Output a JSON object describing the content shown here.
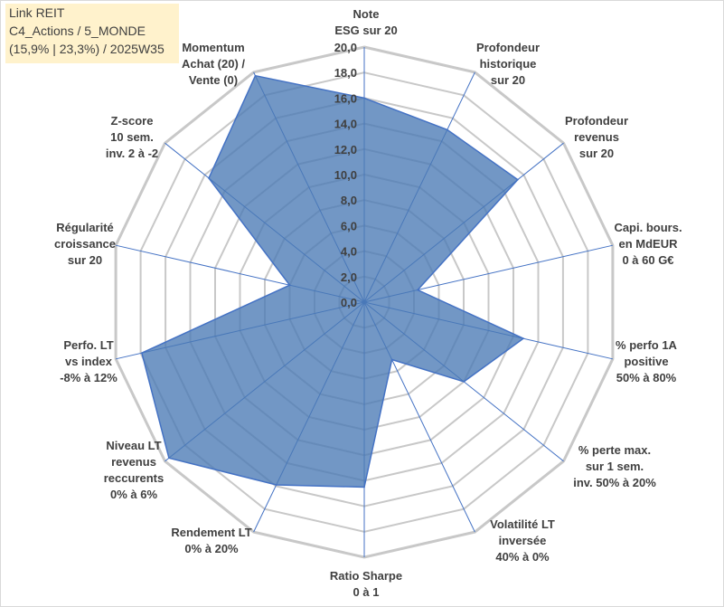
{
  "title": {
    "line1": "Link REIT",
    "line2": "C4_Actions / 5_MONDE",
    "line3": "(15,9% | 23,3%) / 2025W35"
  },
  "chart_data": {
    "type": "radar",
    "r_range": [
      0,
      20
    ],
    "r_ticks": [
      "0,0",
      "2,0",
      "4,0",
      "6,0",
      "8,0",
      "10,0",
      "12,0",
      "14,0",
      "16,0",
      "18,0",
      "20,0"
    ],
    "categories": [
      [
        "Note",
        "ESG sur 20"
      ],
      [
        "Profondeur",
        "historique",
        "sur 20"
      ],
      [
        "Profondeur",
        "revenus",
        "sur 20"
      ],
      [
        "Capi. bours.",
        "en MdEUR",
        "0 à 60 G€"
      ],
      [
        "% perfo 1A",
        "positive",
        "50% à 80%"
      ],
      [
        "% perte max.",
        "sur 1 sem.",
        "inv. 50% à 20%"
      ],
      [
        "Volatilité LT",
        "inversée",
        "40% à 0%"
      ],
      [
        "Ratio Sharpe",
        "0 à 1"
      ],
      [
        "Rendement LT",
        "0% à 20%"
      ],
      [
        "Niveau LT",
        "revenus",
        "reccurents",
        "0% à 6%"
      ],
      [
        "Perfo. LT",
        "vs index",
        "-8% à 12%"
      ],
      [
        "Régularité",
        "croissance",
        "sur 20"
      ],
      [
        "Z-score",
        "10 sem.",
        "inv. 2 à -2"
      ],
      [
        "Momentum",
        "Achat (20) /",
        "Vente (0)"
      ]
    ],
    "series": [
      {
        "values": [
          16.0,
          15.0,
          15.4,
          4.3,
          12.8,
          10.0,
          5.0,
          14.5,
          15.9,
          19.6,
          17.9,
          6.0,
          15.6,
          19.7
        ]
      }
    ],
    "grid": true,
    "legend": "none",
    "colors": {
      "fill": "#4a7ab5",
      "stroke": "#4472c4",
      "grid": "#c8c8c8",
      "spoke": "#4472c4"
    }
  }
}
